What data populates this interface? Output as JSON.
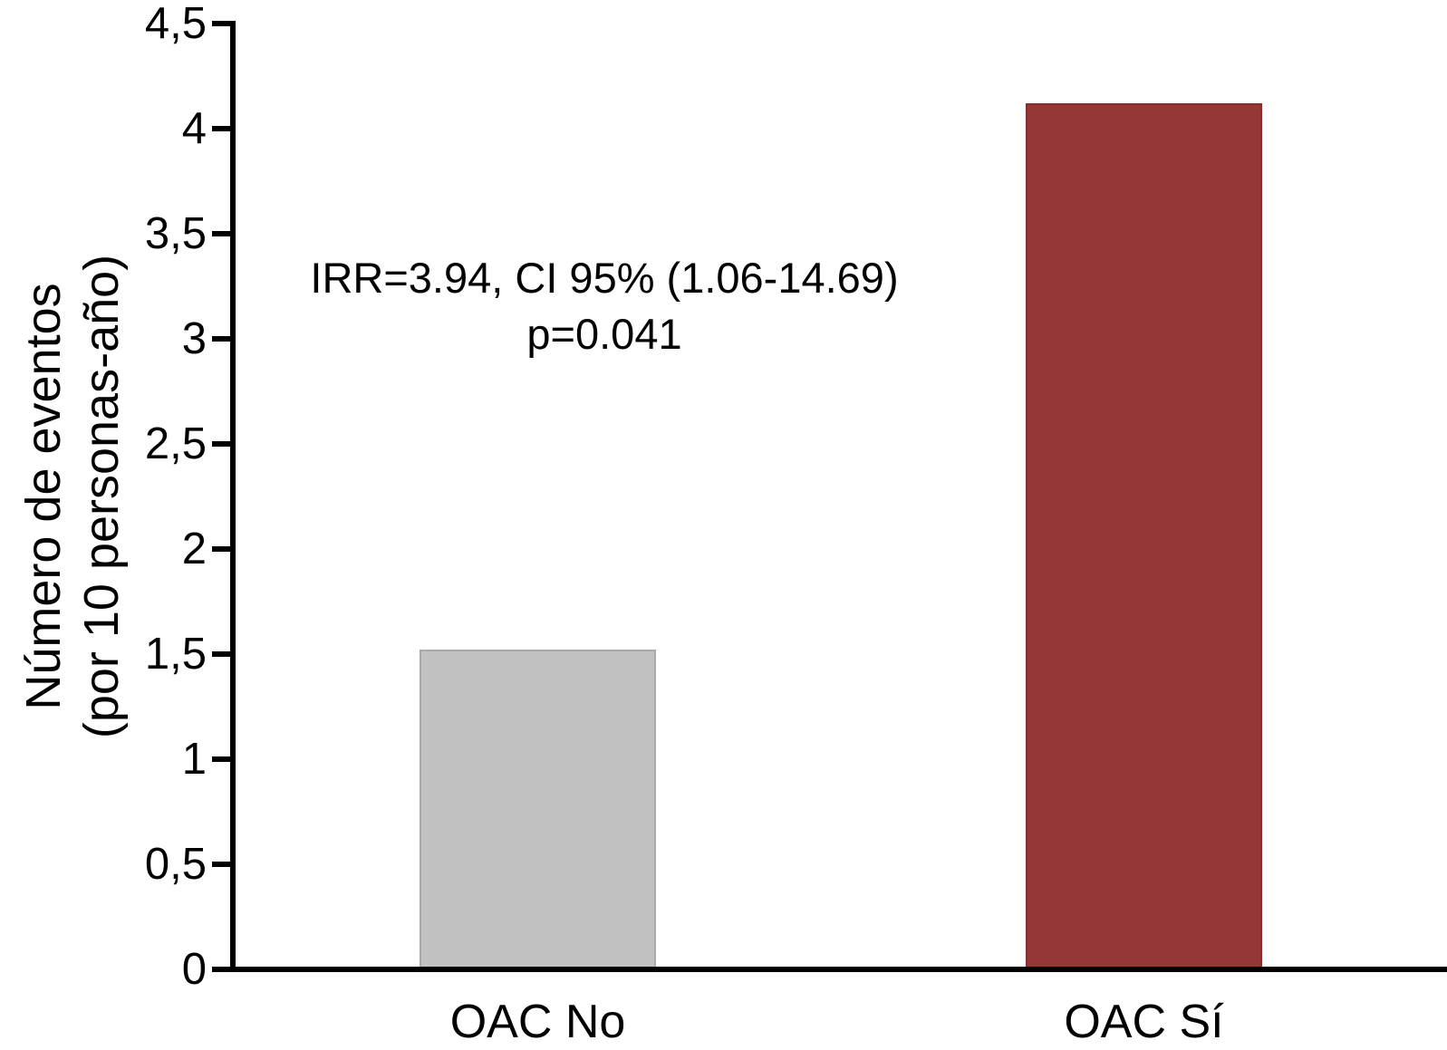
{
  "chart_data": {
    "type": "bar",
    "title": "",
    "categories": [
      "OAC No",
      "OAC Sí"
    ],
    "values": [
      1.52,
      4.12
    ],
    "bar_colors": [
      "#c1c1c1",
      "#953734"
    ],
    "xlabel": "",
    "ylabel_lines": [
      "Número de eventos",
      "(por 10 personas-año)"
    ],
    "ylim": [
      0,
      4.5
    ],
    "yticks": [
      0,
      0.5,
      1,
      1.5,
      2,
      2.5,
      3,
      3.5,
      4,
      4.5
    ],
    "ytick_labels": [
      "0",
      "0,5",
      "1",
      "1,5",
      "2",
      "2,5",
      "3",
      "3,5",
      "4",
      "4,5"
    ],
    "grid": false,
    "legend_position": "none",
    "axis_color": "#000000",
    "background_color": "#ffffff",
    "annotation": {
      "line1": "IRR=3.94, CI 95% (1.06-14.69)",
      "line2": "p=0.041"
    }
  }
}
